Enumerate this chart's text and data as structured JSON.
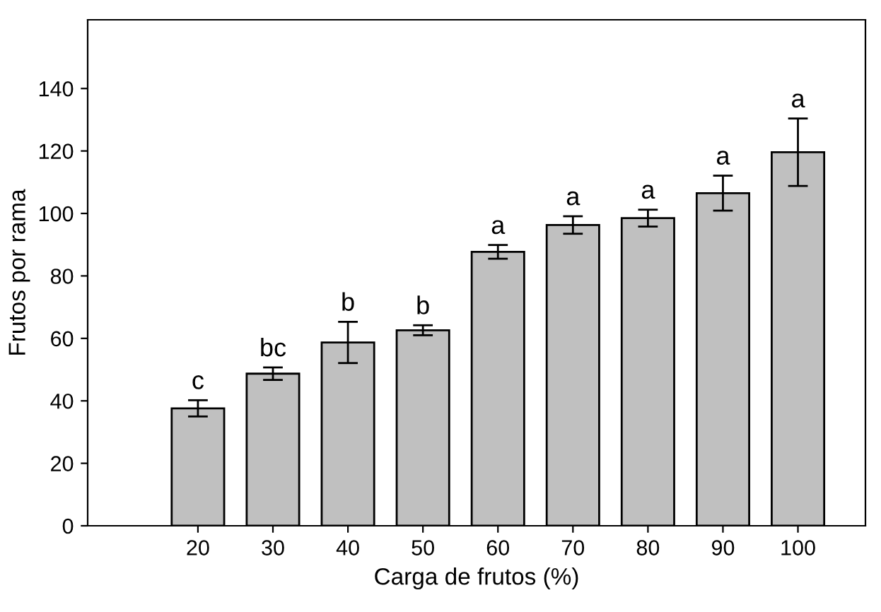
{
  "chart_data": {
    "type": "bar",
    "xlabel": "Carga de frutos (%)",
    "ylabel": "Frutos por rama",
    "categories": [
      "20",
      "30",
      "40",
      "50",
      "60",
      "70",
      "80",
      "90",
      "100"
    ],
    "values": [
      37.6,
      48.7,
      58.7,
      62.6,
      87.7,
      96.3,
      98.5,
      106.5,
      119.6
    ],
    "errors": [
      2.6,
      2.0,
      6.6,
      1.6,
      2.2,
      2.8,
      2.7,
      5.6,
      10.8
    ],
    "color": "#c0c0c0",
    "ylim": [
      0,
      162
    ],
    "yticks": [
      0,
      20,
      40,
      60,
      80,
      100,
      120,
      140
    ],
    "grid": false,
    "annotations": [
      {
        "text": "c",
        "x": "20",
        "y": 40.2
      },
      {
        "text": "bc",
        "x": "30",
        "y": 50.7
      },
      {
        "text": "b",
        "x": "40",
        "y": 65.3
      },
      {
        "text": "b",
        "x": "50",
        "y": 64.2
      },
      {
        "text": "a",
        "x": "60",
        "y": 89.9
      },
      {
        "text": "a",
        "x": "70",
        "y": 99.1
      },
      {
        "text": "a",
        "x": "80",
        "y": 101.2
      },
      {
        "text": "a",
        "x": "90",
        "y": 112.1
      },
      {
        "text": "a",
        "x": "100",
        "y": 130.4
      }
    ]
  }
}
